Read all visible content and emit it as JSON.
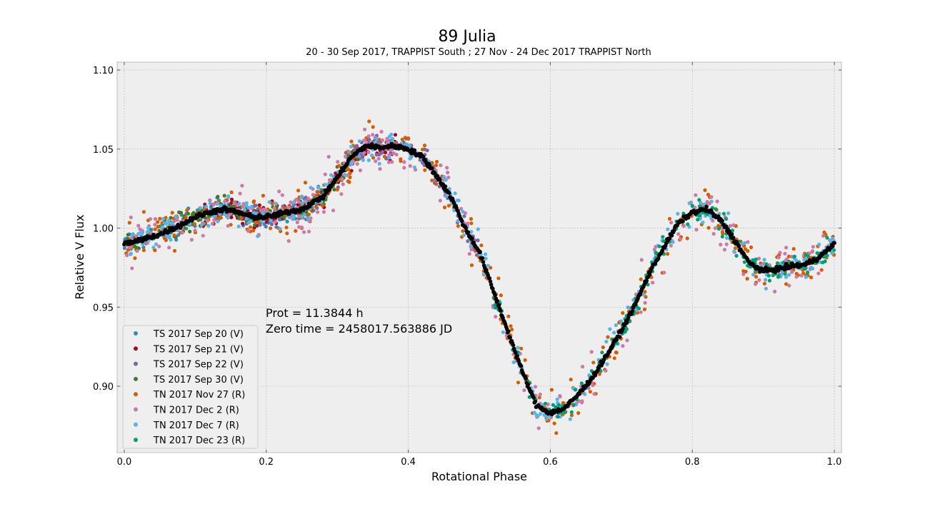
{
  "chart_data": {
    "type": "scatter",
    "title": "89 Julia",
    "subtitle": "20 - 30 Sep 2017, TRAPPIST South ; 27 Nov - 24 Dec 2017 TRAPPIST North",
    "xlabel": "Rotational Phase",
    "ylabel": "Relative V Flux",
    "xlim": [
      -0.01,
      1.01
    ],
    "ylim": [
      0.858,
      1.105
    ],
    "xticks": [
      "0.0",
      "0.2",
      "0.4",
      "0.6",
      "0.8",
      "1.0"
    ],
    "yticks": [
      "0.90",
      "0.95",
      "1.00",
      "1.05",
      "1.10"
    ],
    "grid": true,
    "legend_position": "lower-left",
    "annotations": [
      "Prot = 11.3844 h",
      "Zero time = 2458017.563886 JD"
    ],
    "series": [
      {
        "name": "TS 2017 Sep 20  (V)",
        "color": "#348ABD",
        "range": [
          0.0,
          0.28
        ]
      },
      {
        "name": "TS 2017 Sep 21  (V)",
        "color": "#A60628",
        "range": [
          0.11,
          0.39
        ]
      },
      {
        "name": "TS 2017 Sep 22  (V)",
        "color": "#7A68A6",
        "range": [
          0.15,
          0.5
        ]
      },
      {
        "name": "TS 2017 Sep 30  (V)",
        "color": "#467821",
        "range": [
          0.0,
          0.33
        ]
      },
      {
        "name": "TN 2017 Nov 27  (R)",
        "color": "#D55E00",
        "range": [
          0.0,
          1.0
        ]
      },
      {
        "name": "TN 2017 Dec 2  (R)",
        "color": "#CC79A7",
        "range": [
          0.0,
          1.0
        ]
      },
      {
        "name": "TN 2017 Dec 7  (R)",
        "color": "#56B4E9",
        "range": [
          0.0,
          1.0
        ]
      },
      {
        "name": "TN 2017 Dec 23  (R)",
        "color": "#009E73",
        "range": [
          0.52,
          1.0
        ]
      }
    ],
    "mean_curve": {
      "color": "#000000",
      "x": [
        0.0,
        0.02,
        0.05,
        0.08,
        0.1,
        0.12,
        0.14,
        0.16,
        0.18,
        0.2,
        0.22,
        0.25,
        0.28,
        0.3,
        0.32,
        0.34,
        0.36,
        0.38,
        0.4,
        0.42,
        0.44,
        0.46,
        0.48,
        0.5,
        0.52,
        0.54,
        0.56,
        0.58,
        0.6,
        0.62,
        0.64,
        0.66,
        0.68,
        0.7,
        0.72,
        0.74,
        0.76,
        0.78,
        0.8,
        0.82,
        0.84,
        0.86,
        0.88,
        0.9,
        0.92,
        0.94,
        0.96,
        0.98,
        1.0
      ],
      "y": [
        0.99,
        0.992,
        0.996,
        1.002,
        1.007,
        1.01,
        1.012,
        1.01,
        1.007,
        1.007,
        1.009,
        1.012,
        1.02,
        1.032,
        1.045,
        1.052,
        1.051,
        1.052,
        1.05,
        1.045,
        1.033,
        1.02,
        1.0,
        0.985,
        0.96,
        0.935,
        0.91,
        0.888,
        0.883,
        0.886,
        0.895,
        0.906,
        0.92,
        0.935,
        0.952,
        0.972,
        0.988,
        1.003,
        1.01,
        1.012,
        1.005,
        0.992,
        0.978,
        0.973,
        0.974,
        0.976,
        0.977,
        0.982,
        0.99
      ]
    }
  }
}
